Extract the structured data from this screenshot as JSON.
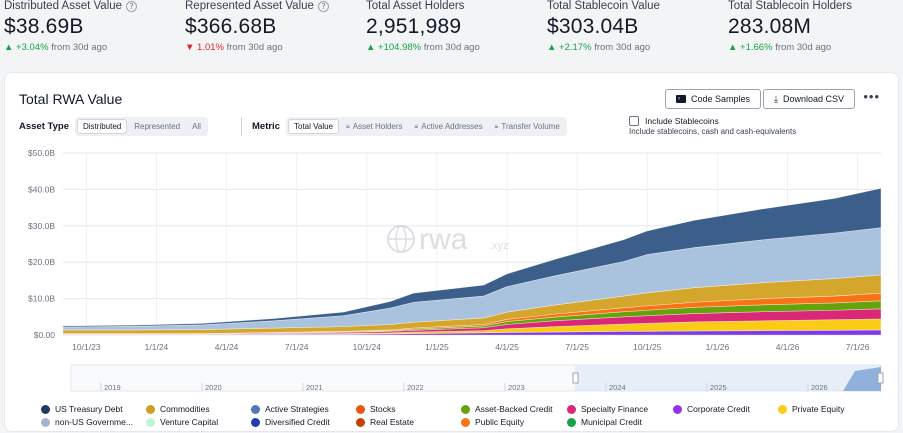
{
  "stats": [
    {
      "label": "Distributed Asset Value",
      "value": "$38.69B",
      "change": "+3.04%",
      "suffix": "from 30d ago",
      "dir": "up"
    },
    {
      "label": "Represented Asset Value",
      "value": "$366.68B",
      "change": "1.01%",
      "suffix": "from 30d ago",
      "dir": "down"
    },
    {
      "label": "Total Asset Holders",
      "value": "2,951,989",
      "change": "+104.98%",
      "suffix": "from 30d ago",
      "dir": "up"
    },
    {
      "label": "Total Stablecoin Value",
      "value": "$303.04B",
      "change": "+2.17%",
      "suffix": "from 30d ago",
      "dir": "up"
    },
    {
      "label": "Total Stablecoin Holders",
      "value": "283.08M",
      "change": "+1.66%",
      "suffix": "from 30d ago",
      "dir": "up"
    }
  ],
  "card": {
    "title": "Total RWA Value",
    "code_samples": "Code Samples",
    "download_csv": "Download CSV",
    "more": "•••",
    "asset_type_label": "Asset Type",
    "asset_types": [
      "Distributed",
      "Represented",
      "All"
    ],
    "metric_label": "Metric",
    "metrics": [
      "Total Value",
      "Asset Holders",
      "Active Addresses",
      "Transfer Volume"
    ],
    "include_stablecoins": "Include Stablecoins",
    "include_desc": "Include stablecoins, cash and cash-equivalents",
    "watermark": "rwa",
    "watermark_sub": ".xyz"
  },
  "colors": {
    "up": "#16a34a",
    "down": "#dc2626",
    "accent": "#3b5f8a"
  },
  "chart_data": {
    "type": "area",
    "y_ticks": [
      "$0.00",
      "$10.0B",
      "$20.0B",
      "$30.0B",
      "$40.0B",
      "$50.0B"
    ],
    "x_ticks": [
      "10/1/23",
      "1/1/24",
      "4/1/24",
      "7/1/24",
      "10/1/24",
      "1/1/25",
      "4/1/25",
      "7/1/25",
      "10/1/25",
      "1/1/26",
      "4/1/26",
      "7/1/26"
    ],
    "ylim": [
      0,
      50
    ],
    "grid": true,
    "x": [
      0,
      3,
      6,
      9,
      12,
      14,
      15,
      18,
      19,
      21,
      24,
      25,
      27,
      30,
      33,
      35
    ],
    "series": [
      {
        "name": "Municipal Credit",
        "color": "#7c3aed",
        "values": [
          0.1,
          0.1,
          0.1,
          0.2,
          0.2,
          0.3,
          0.4,
          0.6,
          0.7,
          0.8,
          1.0,
          1.0,
          1.1,
          1.2,
          1.3,
          1.4
        ]
      },
      {
        "name": "Private Equity",
        "color": "#facc15",
        "values": [
          0.1,
          0.1,
          0.1,
          0.1,
          0.2,
          0.3,
          0.4,
          0.6,
          1.0,
          1.5,
          2.0,
          2.2,
          2.5,
          2.7,
          2.9,
          3.0
        ]
      },
      {
        "name": "Specialty Finance",
        "color": "#db2777",
        "values": [
          0.1,
          0.1,
          0.1,
          0.2,
          0.3,
          0.4,
          0.5,
          0.8,
          1.2,
          1.6,
          2.0,
          2.1,
          2.3,
          2.5,
          2.6,
          2.8
        ]
      },
      {
        "name": "Asset-Backed Credit",
        "color": "#65a30d",
        "values": [
          0.1,
          0.1,
          0.1,
          0.1,
          0.2,
          0.2,
          0.3,
          0.5,
          0.8,
          1.0,
          1.4,
          1.5,
          1.7,
          1.9,
          2.0,
          2.2
        ]
      },
      {
        "name": "Public Equity",
        "color": "#f97316",
        "values": [
          0.0,
          0.0,
          0.0,
          0.1,
          0.1,
          0.2,
          0.3,
          0.4,
          0.6,
          0.8,
          1.1,
          1.2,
          1.4,
          1.7,
          1.9,
          2.1
        ]
      },
      {
        "name": "Commodities",
        "color": "#d4a72c",
        "values": [
          1.0,
          1.0,
          1.1,
          1.2,
          1.3,
          1.5,
          1.6,
          1.8,
          2.0,
          2.5,
          3.2,
          3.6,
          4.0,
          4.4,
          4.8,
          5.0
        ]
      },
      {
        "name": "US Treasury Debt",
        "color": "#a9c2dd",
        "values": [
          0.8,
          1.0,
          1.3,
          2.0,
          3.0,
          4.5,
          5.5,
          6.0,
          7.0,
          8.0,
          9.5,
          10.5,
          11.0,
          11.8,
          12.5,
          13.0
        ]
      },
      {
        "name": "Active Strategies",
        "color": "#3b5f8a",
        "values": [
          0.3,
          0.3,
          0.4,
          0.6,
          1.0,
          1.8,
          2.5,
          3.0,
          3.5,
          4.5,
          6.0,
          6.5,
          7.5,
          8.5,
          9.5,
          10.8
        ]
      }
    ]
  },
  "navigator": {
    "years": [
      "2019",
      "2020",
      "2021",
      "2022",
      "2023",
      "2024",
      "2025",
      "2026"
    ]
  },
  "legend": [
    {
      "name": "US Treasury Debt",
      "color": "#1e3a5f"
    },
    {
      "name": "Commodities",
      "color": "#c9a227"
    },
    {
      "name": "Active Strategies",
      "color": "#4f7bb5"
    },
    {
      "name": "Stocks",
      "color": "#ea580c"
    },
    {
      "name": "Asset-Backed Credit",
      "color": "#65a30d"
    },
    {
      "name": "Specialty Finance",
      "color": "#db2777"
    },
    {
      "name": "Corporate Credit",
      "color": "#9333ea"
    },
    {
      "name": "Private Equity",
      "color": "#facc15"
    },
    {
      "name": "non-US Governme...",
      "color": "#a5b4cc"
    },
    {
      "name": "Venture Capital",
      "color": "#bbf7d0"
    },
    {
      "name": "Diversified Credit",
      "color": "#1e40af"
    },
    {
      "name": "Real Estate",
      "color": "#c2410c"
    },
    {
      "name": "Public Equity",
      "color": "#f97316"
    },
    {
      "name": "Municipal Credit",
      "color": "#16a34a"
    }
  ]
}
